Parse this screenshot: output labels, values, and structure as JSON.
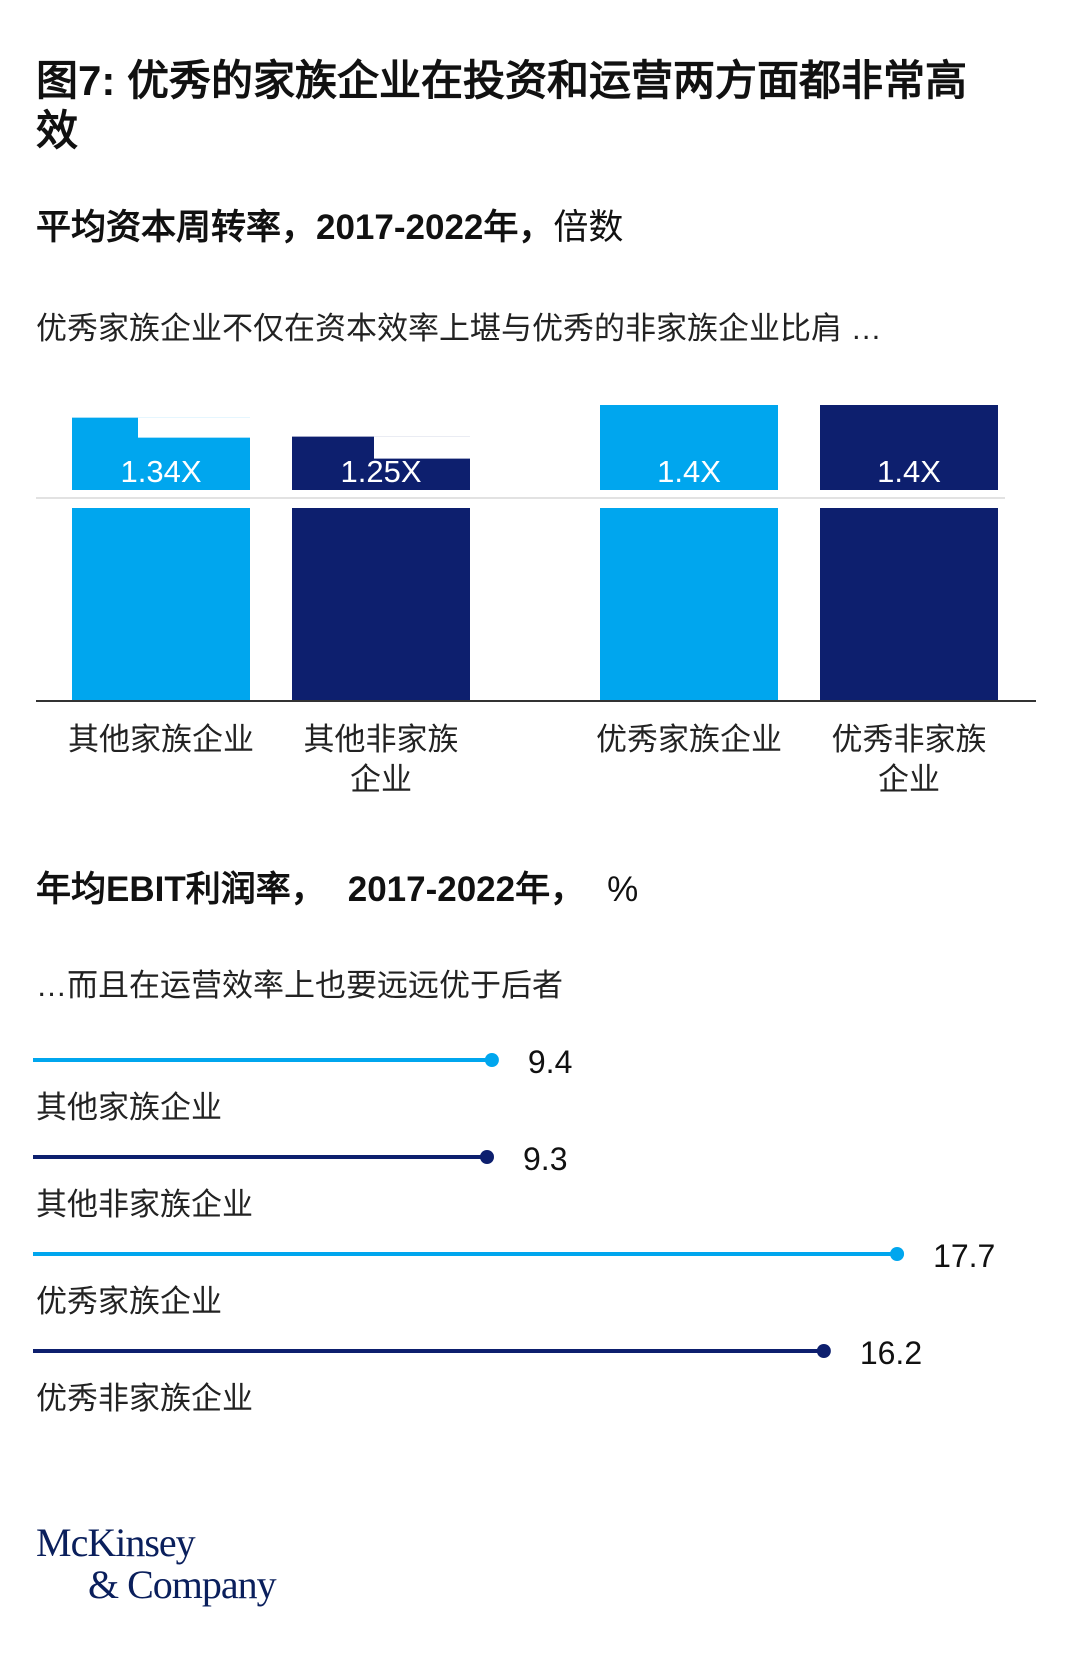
{
  "title": "图7: 优秀的家族企业在投资和运营两方面都非常高效",
  "colors": {
    "light": "#00a6ee",
    "dark": "#0d1f6e",
    "axis": "#333333",
    "grid": "#e2e2e2"
  },
  "chart_data": [
    {
      "type": "bar",
      "title": "平均资本周转率，2017-2022年，",
      "unit": "倍数",
      "subtitle": "优秀家族企业不仅在资本效率上堪与优秀的非家族企业比肩 …",
      "categories": [
        "其他家族企业",
        "其他非家族企业",
        "优秀家族企业",
        "优秀非家族企业"
      ],
      "category_lines": [
        [
          "其他家族企业"
        ],
        [
          "其他非家族",
          "企业"
        ],
        [
          "优秀家族企业"
        ],
        [
          "优秀非家族",
          "企业"
        ]
      ],
      "values": [
        1.34,
        1.25,
        1.4,
        1.4
      ],
      "labels": [
        "1.34X",
        "1.25X",
        "1.4X",
        "1.4X"
      ],
      "series_color": [
        "light",
        "dark",
        "light",
        "dark"
      ],
      "ylim": [
        0,
        1.4
      ],
      "axis_break": true
    },
    {
      "type": "lollipop",
      "title": "年均EBIT利润率，",
      "years": "2017-2022年，",
      "unit": "%",
      "subtitle": "…而且在运营效率上也要远远优于后者",
      "categories": [
        "其他家族企业",
        "其他非家族企业",
        "优秀家族企业",
        "优秀非家族企业"
      ],
      "values": [
        9.4,
        9.3,
        17.7,
        16.2
      ],
      "labels": [
        "9.4",
        "9.3",
        "17.7",
        "16.2"
      ],
      "series_color": [
        "light",
        "dark",
        "light",
        "dark"
      ],
      "xlim": [
        0,
        18.6
      ]
    }
  ],
  "logo": {
    "line1": "McKinsey",
    "line2": "& Company"
  }
}
